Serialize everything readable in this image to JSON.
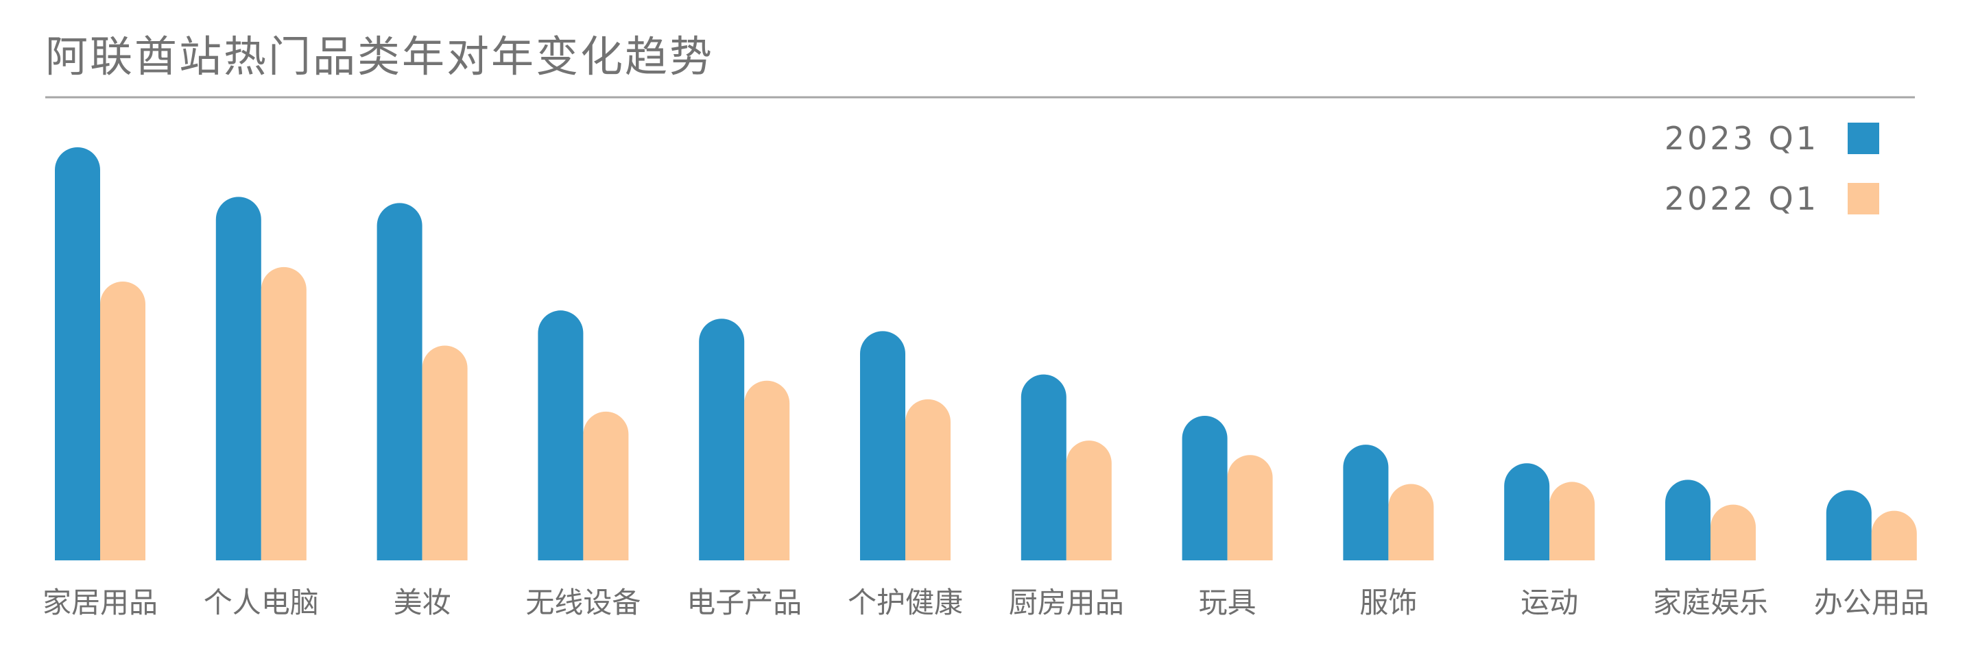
{
  "chart_data": {
    "type": "bar",
    "title": "阿联酋站热门品类年对年变化趋势",
    "categories": [
      "家居用品",
      "个人电脑",
      "美妆",
      "无线设备",
      "电子产品",
      "个护健康",
      "厨房用品",
      "玩具",
      "服饰",
      "运动",
      "家庭娱乐",
      "办公用品"
    ],
    "series": [
      {
        "name": "2023 Q1",
        "color": "#2891c6",
        "values": [
          100,
          88,
          86.5,
          60.5,
          58.5,
          55.5,
          45,
          35,
          28,
          23.5,
          19.5,
          17
        ]
      },
      {
        "name": "2022 Q1",
        "color": "#fdc898",
        "values": [
          67.5,
          71,
          52,
          36,
          43.5,
          39,
          29,
          25.5,
          18.5,
          19,
          13.5,
          12
        ]
      }
    ],
    "xlabel": "",
    "ylabel": "",
    "ylim": [
      0,
      100
    ],
    "grid": false,
    "legend_position": "top-right",
    "title_rule_color": "#a6a6a6"
  }
}
